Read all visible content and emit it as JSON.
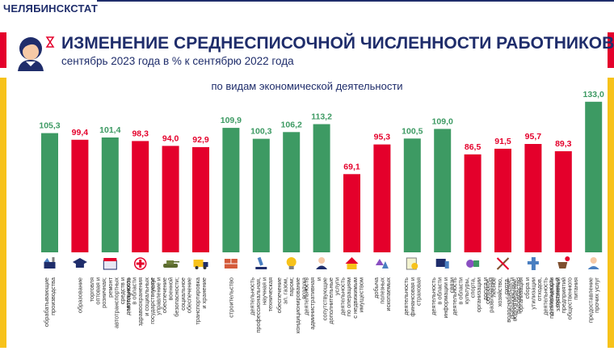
{
  "header": {
    "brand": "ЧЕЛЯБИНСКСТАТ",
    "title": "ИЗМЕНЕНИЕ СРЕДНЕСПИСОЧНОЙ ЧИСЛЕННОСТИ РАБОТНИКОВ,",
    "subtitle": "сентябрь 2023 года в % к сентябрю 2022 года"
  },
  "colors": {
    "brand_navy": "#1f2d6b",
    "accent_red": "#e4002b",
    "accent_yellow": "#f7c21a",
    "bar_green": "#3d9a63",
    "bar_red": "#e4002b"
  },
  "chart_data": {
    "type": "bar",
    "subtitle": "по видам экономической деятельности",
    "ylim": [
      0,
      140
    ],
    "grid": false,
    "legend": "none",
    "categories": [
      "обрабатывающие производства",
      "образование",
      "торговля оптовая и розничная; ремонт автотранспортных средств и мотоциклов",
      "деятельность в области здравоохранения и социальных услуг",
      "государственное управление и обеспечение военной безопасности; социальное обеспечение",
      "транспортировка и хранение",
      "строительство",
      "деятельность профессиональная, научная и техническая",
      "обеспечение эл. газом, паром; кондиционирование воздуха",
      "деятельность административная и сопутствующие дополнительные услуги",
      "деятельность по операциям с недвижимым имуществом",
      "добыча полезных ископаемых",
      "деятельность финансовая и страховая",
      "деятельность в области информации и связи",
      "деятельность в области культуры, спорта, организации досуга и развлечений",
      "сельское, лесное хозяйство, охота, рыболовство и рыбоводство",
      "водоснабжение; водоотведение, организация сбора и утилизации отходов, деятельность по ликвидации загрязнений",
      "деятельность гостиниц и предприятий общественного питания",
      "предоставление прочих услуг"
    ],
    "values": [
      105.3,
      99.4,
      101.4,
      98.3,
      94.0,
      92.9,
      109.9,
      100.3,
      106.2,
      113.2,
      69.1,
      95.3,
      100.5,
      109.0,
      86.5,
      91.5,
      95.7,
      89.3,
      133.0
    ],
    "labels": [
      "105,3",
      "99,4",
      "101,4",
      "98,3",
      "94,0",
      "92,9",
      "109,9",
      "100,3",
      "106,2",
      "113,2",
      "69,1",
      "95,3",
      "100,5",
      "109,0",
      "86,5",
      "91,5",
      "95,7",
      "89,3",
      "133,0"
    ],
    "bar_colors": [
      "green",
      "red",
      "green",
      "red",
      "red",
      "red",
      "green",
      "green",
      "green",
      "green",
      "red",
      "red",
      "green",
      "green",
      "red",
      "red",
      "red",
      "red",
      "green"
    ],
    "icons": [
      "factory-tools-icon",
      "graduation-cap-icon",
      "shop-icon",
      "medical-icon",
      "tank-icon",
      "truck-icon",
      "brick-wall-icon",
      "microscope-icon",
      "lightbulb-icon",
      "administrator-icon",
      "house-icon",
      "minerals-icon",
      "finance-icon",
      "computer-phone-icon",
      "culture-icon",
      "farming-tools-icon",
      "water-pipe-icon",
      "cafe-icon",
      "service-worker-icon"
    ]
  }
}
